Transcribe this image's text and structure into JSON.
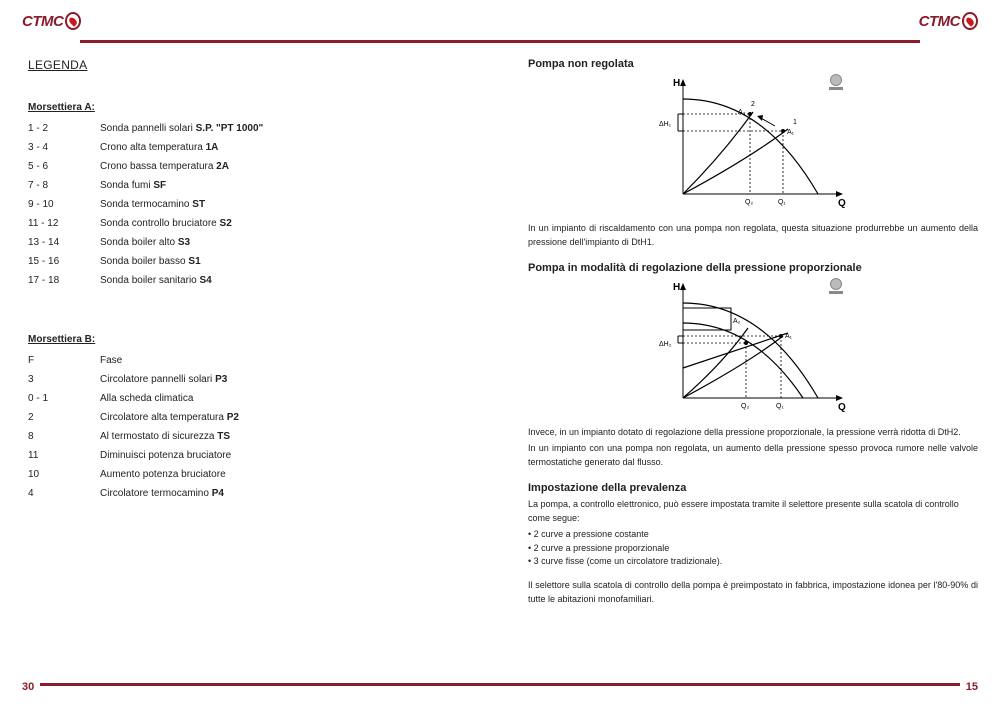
{
  "brand": "CTMC",
  "left": {
    "pagenum": "30",
    "title": "LEGENDA",
    "sectionA_title": "Morsettiera  A:",
    "sectionA": [
      {
        "k": "1 - 2",
        "v": "Sonda pannelli solari S.P. \"PT 1000\"",
        "b": "S.P. \"PT 1000\""
      },
      {
        "k": "3 - 4",
        "v": "Crono alta temperatura 1A",
        "b": "1A"
      },
      {
        "k": "5 - 6",
        "v": "Crono bassa temperatura 2A",
        "b": "2A"
      },
      {
        "k": "7 - 8",
        "v": "Sonda fumi SF",
        "b": "SF"
      },
      {
        "k": "9 - 10",
        "v": "Sonda termocamino ST",
        "b": "ST"
      },
      {
        "k": "11 - 12",
        "v": "Sonda controllo bruciatore S2",
        "b": "S2"
      },
      {
        "k": "13 - 14",
        "v": "Sonda boiler alto S3",
        "b": "S3"
      },
      {
        "k": "15 - 16",
        "v": "Sonda boiler basso S1",
        "b": "S1"
      },
      {
        "k": "17 - 18",
        "v": "Sonda boiler sanitario S4",
        "b": "S4"
      }
    ],
    "sectionB_title": "Morsettiera  B:",
    "sectionB": [
      {
        "k": "F",
        "v": "Fase"
      },
      {
        "k": "3",
        "v": "Circolatore pannelli solari P3",
        "b": "P3"
      },
      {
        "k": "0 - 1",
        "v": "Alla scheda climatica"
      },
      {
        "k": "2",
        "v": "Circolatore alta temperatura P2",
        "b": "P2"
      },
      {
        "k": "8",
        "v": "Al termostato di sicurezza TS",
        "b": "TS"
      },
      {
        "k": "11",
        "v": "Diminuisci potenza bruciatore"
      },
      {
        "k": "10",
        "v": "Aumento potenza bruciatore"
      },
      {
        "k": "4",
        "v": "Circolatore termocamino P4",
        "b": "P4"
      }
    ]
  },
  "right": {
    "pagenum": "15",
    "heading1": "Pompa non regolata",
    "chart1": {
      "H": "H",
      "Q": "Q",
      "DH": "ΔH₁",
      "Q1": "Q₁",
      "Q2": "Q₂",
      "A1": "A₁",
      "A2": "A₂",
      "n1": "1",
      "n2": "2"
    },
    "para1": "In un impianto di riscaldamento con una pompa non regolata, questa situazione produrrebbe un aumento della pressione dell'impianto di DtH1.",
    "heading2": "Pompa in modalità di regolazione della pressione proporzionale",
    "chart2": {
      "H": "H",
      "Q": "Q",
      "DH": "ΔH₂",
      "Q1": "Q₁",
      "Q2": "Q₂",
      "A1": "A₁",
      "A2": "A₂"
    },
    "para2a": "Invece, in un impianto dotato di regolazione della pressione proporzionale, la pressione verrà ridotta di DtH2.",
    "para2b": "In un impianto con una pompa non regolata, un aumento della pressione spesso provoca rumore nelle valvole termostatiche generato dal flusso.",
    "heading3": "Impostazione della prevalenza",
    "para3a": "La pompa, a controllo elettronico, può essere impostata tramite il selettore presente sulla scatola di controllo",
    "para3b": "come segue:",
    "bullets": [
      "• 2 curve a pressione costante",
      "• 2 curve a pressione proporzionale",
      "• 3 curve fisse (come un circolatore tradizionale)."
    ],
    "para4": "Il selettore sulla scatola di controllo della pompa è preimpostato in fabbrica, impostazione idonea per l'80-90% di tutte le abitazioni monofamiliari."
  },
  "colors": {
    "brand": "#8a1c2c",
    "text": "#222222",
    "bg": "#ffffff"
  }
}
